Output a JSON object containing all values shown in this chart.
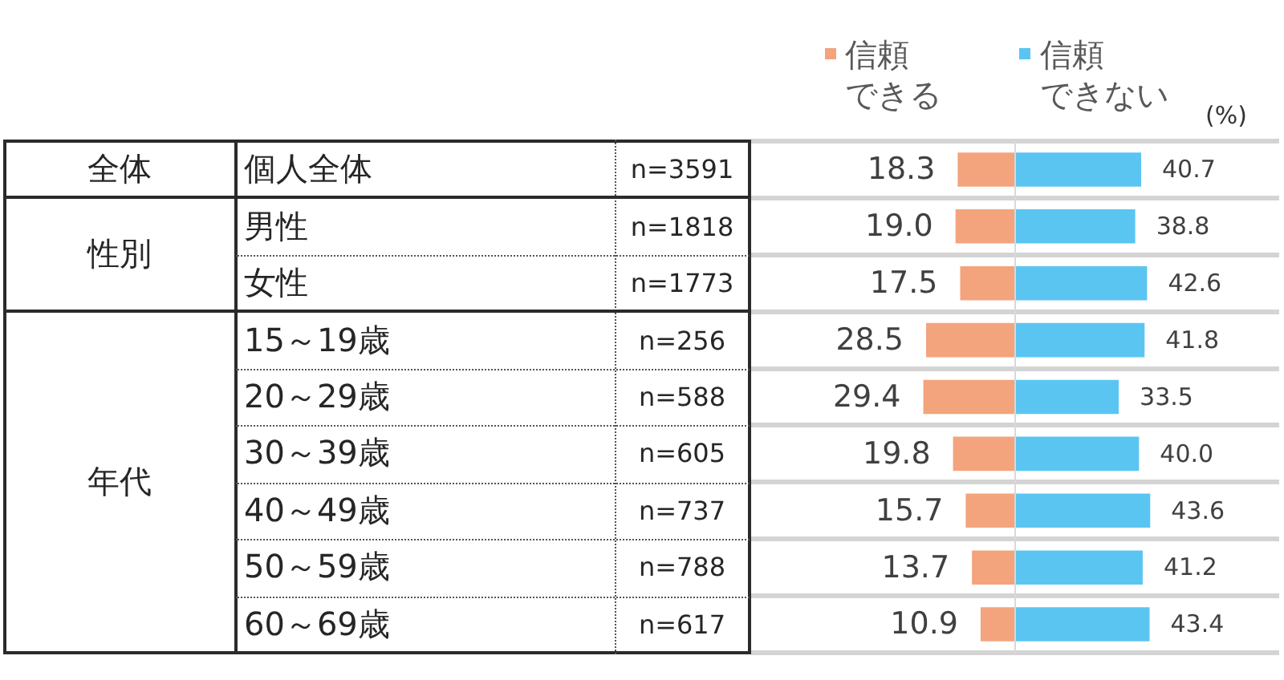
{
  "chart_data": [
    {
      "type": "bar",
      "orientation": "horizontal",
      "categories": [
        "個人全体",
        "男性",
        "女性",
        "15～19歳",
        "20～29歳",
        "30～39歳",
        "40～49歳",
        "50～59歳",
        "60～69歳"
      ],
      "y2_categories": [
        "n=3591",
        "n=1818",
        "n=1773",
        "n=256",
        "n=588",
        "n=605",
        "n=737",
        "n=788",
        "n=617"
      ],
      "series": [
        {
          "name": "信頼できる",
          "color": "#f3a47d",
          "values": [
            18.3,
            19.0,
            17.5,
            28.5,
            29.4,
            19.8,
            15.7,
            13.7,
            10.9
          ],
          "value_labels": [
            "18.3",
            "19.0",
            "17.5",
            "28.5",
            "29.4",
            "19.8",
            "15.7",
            "13.7",
            "10.9"
          ]
        }
      ],
      "xlim": [
        85,
        0
      ],
      "tick_labels": "y",
      "annotations": [
        "全体",
        "性別",
        "年代"
      ],
      "grid": "y",
      "legend": "top"
    },
    {
      "type": "bar",
      "orientation": "horizontal",
      "categories": [
        null,
        null,
        null,
        null,
        null,
        null,
        null,
        null,
        null
      ],
      "series": [
        {
          "name": "信頼できない",
          "color": "#5bc5f2",
          "values": [
            40.7,
            38.8,
            42.6,
            41.8,
            33.5,
            40.0,
            43.6,
            41.2,
            43.4
          ],
          "value_labels": [
            "40.7",
            "38.8",
            "42.6",
            "41.8",
            "33.5",
            "40.0",
            "43.6",
            "41.2",
            "43.4"
          ]
        }
      ],
      "xlim": [
        0,
        85
      ],
      "tick_labels": false,
      "xlabel": "(%)",
      "ref_lines": [
        {
          "axis": "x",
          "value": 0,
          "color": "#d9d9d9"
        }
      ],
      "grid": "y",
      "legend": "top left"
    }
  ]
}
